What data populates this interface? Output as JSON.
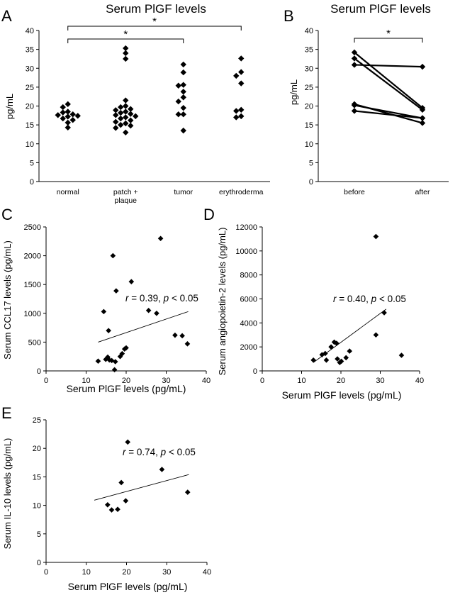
{
  "chart_data": [
    {
      "panel": "A",
      "type": "scatter",
      "title": "Serum PlGF levels",
      "ylabel": "pg/mL",
      "ylim": [
        0,
        40
      ],
      "yticks": [
        0,
        5,
        10,
        15,
        20,
        25,
        30,
        35,
        40
      ],
      "categories": [
        "normal",
        "patch +\nplaque",
        "tumor",
        "erythroderma"
      ],
      "significance": [
        {
          "from": "normal",
          "to": "tumor",
          "label": "*"
        },
        {
          "from": "normal",
          "to": "erythroderma",
          "label": "*"
        }
      ],
      "series": [
        {
          "category": "normal",
          "values": [
            20.5,
            19.7,
            18.5,
            18.3,
            17.8,
            17.6,
            17.4,
            17.2,
            16.7,
            16.3,
            15.6,
            14.3
          ]
        },
        {
          "category": "patch +\nplaque",
          "values": [
            35.3,
            34.0,
            32.5,
            21.5,
            20.0,
            19.7,
            19.2,
            18.9,
            18.5,
            18.2,
            17.9,
            17.6,
            17.3,
            17.0,
            16.7,
            16.2,
            15.8,
            15.4,
            15.0,
            14.8,
            14.2,
            13.0
          ]
        },
        {
          "category": "tumor",
          "values": [
            31.0,
            28.9,
            25.6,
            25.4,
            23.8,
            22.3,
            21.2,
            19.5,
            17.8,
            17.8,
            13.5
          ]
        },
        {
          "category": "erythroderma",
          "values": [
            32.6,
            29.0,
            28.0,
            26.0,
            19.0,
            18.7,
            17.3,
            17.0
          ]
        }
      ]
    },
    {
      "panel": "B",
      "type": "line",
      "title": "Serum PlGF levels",
      "ylabel": "pg/mL",
      "ylim": [
        0,
        40
      ],
      "yticks": [
        0,
        5,
        10,
        15,
        20,
        25,
        30,
        35,
        40
      ],
      "categories": [
        "before",
        "after"
      ],
      "significance": [
        {
          "from": "before",
          "to": "after",
          "label": "*"
        }
      ],
      "pairs": [
        [
          34.2,
          19.5
        ],
        [
          32.6,
          19.0
        ],
        [
          30.9,
          30.4
        ],
        [
          20.5,
          15.5
        ],
        [
          20.2,
          16.8
        ],
        [
          18.7,
          16.8
        ]
      ]
    },
    {
      "panel": "C",
      "type": "scatter",
      "xlabel": "Serum PlGF levels (pg/mL)",
      "ylabel": "Serum CCL17 levels (pg/mL)",
      "xlim": [
        0,
        40
      ],
      "xticks": [
        0,
        10,
        20,
        30,
        40
      ],
      "ylim": [
        0,
        2500
      ],
      "yticks": [
        0,
        500,
        1000,
        1500,
        2000,
        2500
      ],
      "annotation": {
        "r": "r",
        "eq": " = 0.39, ",
        "p": "p",
        "rest": " < 0.05"
      },
      "trend": {
        "x": [
          13,
          35.5
        ],
        "y": [
          500,
          1030
        ]
      },
      "points": [
        [
          28.6,
          2300
        ],
        [
          16.7,
          2000
        ],
        [
          21.3,
          1550
        ],
        [
          17.5,
          1390
        ],
        [
          14.4,
          1030
        ],
        [
          25.6,
          1050
        ],
        [
          27.6,
          1000
        ],
        [
          15.6,
          700
        ],
        [
          32.2,
          620
        ],
        [
          34.0,
          610
        ],
        [
          35.3,
          470
        ],
        [
          20.0,
          400
        ],
        [
          19.6,
          380
        ],
        [
          19.0,
          300
        ],
        [
          18.5,
          250
        ],
        [
          15.4,
          240
        ],
        [
          14.9,
          200
        ],
        [
          15.8,
          190
        ],
        [
          16.4,
          180
        ],
        [
          13.0,
          170
        ],
        [
          17.3,
          160
        ],
        [
          17.1,
          20
        ]
      ]
    },
    {
      "panel": "D",
      "type": "scatter",
      "xlabel": "Serum PlGF levels (pg/mL)",
      "ylabel": "Serum angiopoietin-2 levels (pg/mL)",
      "xlim": [
        0,
        40
      ],
      "xticks": [
        0,
        10,
        20,
        30,
        40
      ],
      "ylim": [
        0,
        12000
      ],
      "yticks": [
        0,
        2000,
        4000,
        6000,
        8000,
        10000,
        12000
      ],
      "annotation": {
        "r": "r",
        "eq": " = 0.40, ",
        "p": "p",
        "rest": " < 0.05"
      },
      "trend": {
        "x": [
          13,
          31.5
        ],
        "y": [
          700,
          5150
        ]
      },
      "points": [
        [
          28.9,
          11200
        ],
        [
          31.0,
          4850
        ],
        [
          28.9,
          3000
        ],
        [
          18.3,
          2400
        ],
        [
          18.9,
          2300
        ],
        [
          17.5,
          2000
        ],
        [
          22.2,
          1650
        ],
        [
          16.0,
          1450
        ],
        [
          15.2,
          1350
        ],
        [
          35.4,
          1300
        ],
        [
          21.3,
          1100
        ],
        [
          19.1,
          1000
        ],
        [
          16.3,
          900
        ],
        [
          13.0,
          900
        ],
        [
          20.1,
          800
        ],
        [
          19.7,
          700
        ]
      ]
    },
    {
      "panel": "E",
      "type": "scatter",
      "xlabel": "Serum PlGF levels (pg/mL)",
      "ylabel": "Serum IL-10 levels (pg/mL)",
      "xlim": [
        0,
        40
      ],
      "xticks": [
        0,
        10,
        20,
        30,
        40
      ],
      "ylim": [
        0,
        25
      ],
      "yticks": [
        0,
        5,
        10,
        15,
        20,
        25
      ],
      "annotation": {
        "r": "r",
        "eq": " = 0.74, ",
        "p": "p",
        "rest": " < 0.05"
      },
      "trend": {
        "x": [
          12,
          35.5
        ],
        "y": [
          10.9,
          15.4
        ]
      },
      "points": [
        [
          20.3,
          21.1
        ],
        [
          28.8,
          16.3
        ],
        [
          18.7,
          14.0
        ],
        [
          35.2,
          12.3
        ],
        [
          19.8,
          10.8
        ],
        [
          15.3,
          10.1
        ],
        [
          17.8,
          9.3
        ],
        [
          16.3,
          9.2
        ]
      ]
    }
  ]
}
